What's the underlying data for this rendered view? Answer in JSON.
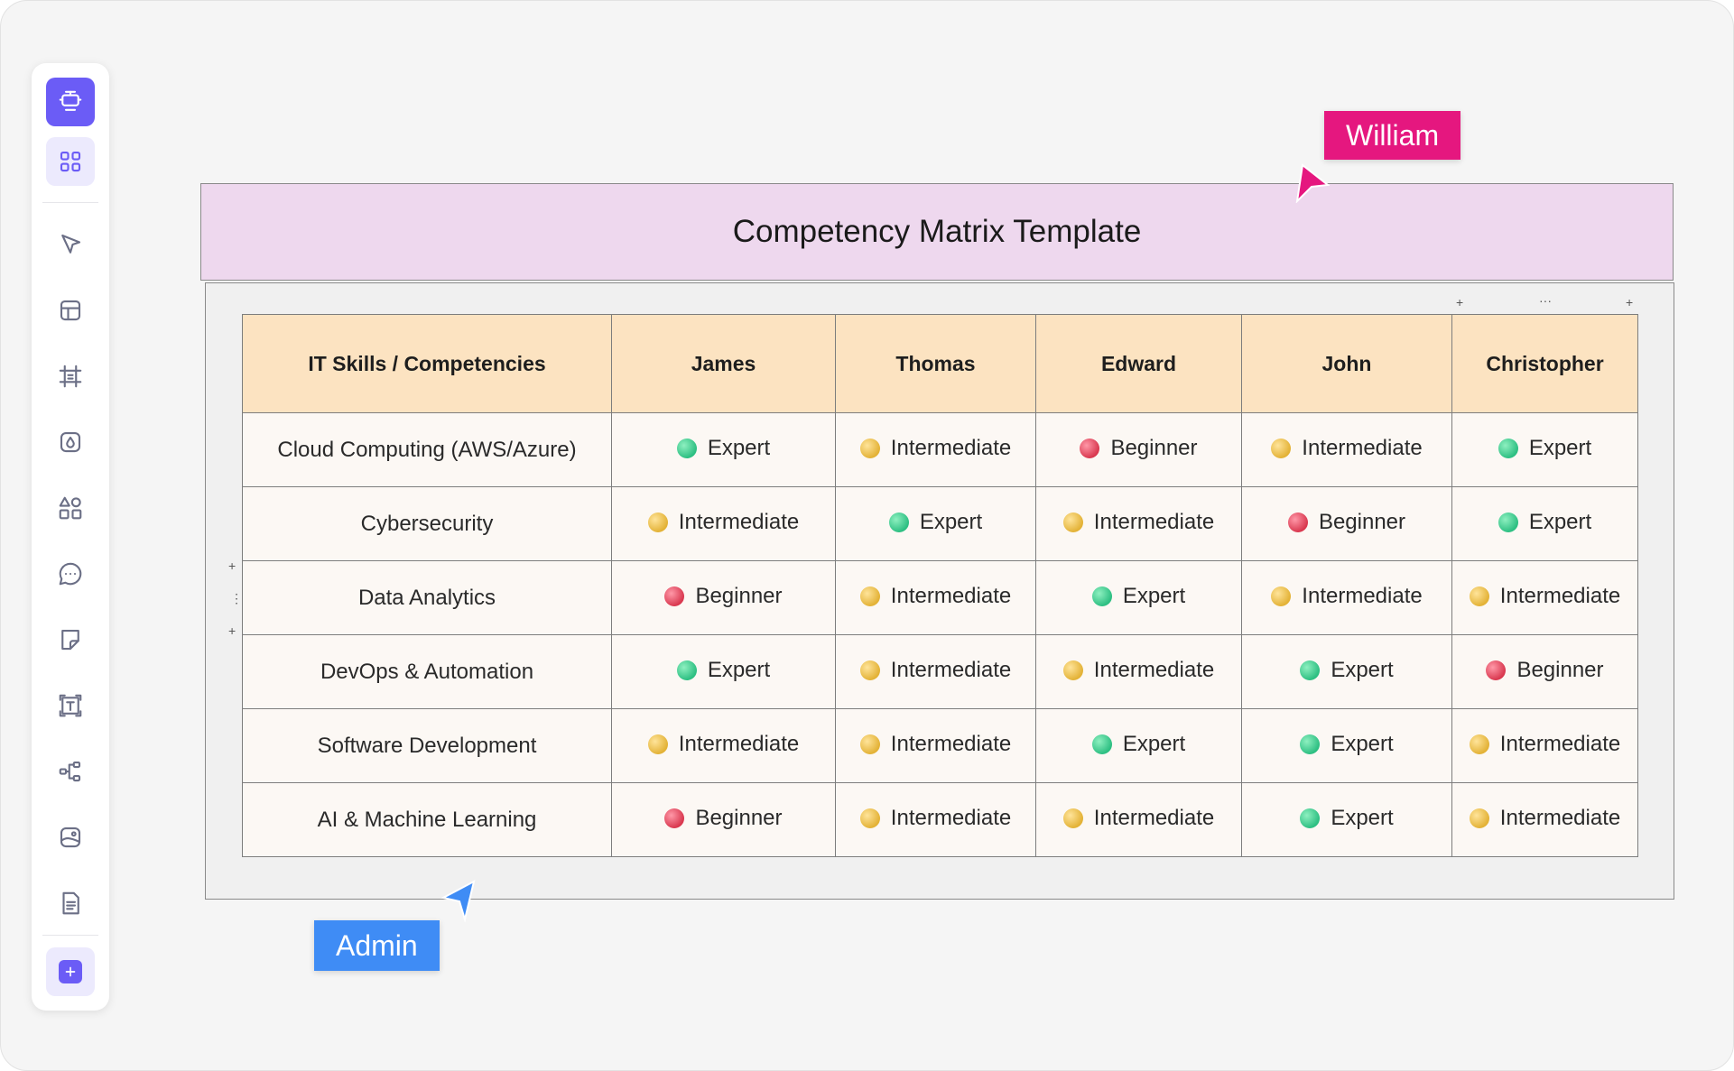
{
  "toolbar": {
    "tools": [
      "present-icon",
      "grid-icon",
      "select-cursor-icon",
      "layout-icon",
      "frame-icon",
      "color-drop-icon",
      "shapes-icon",
      "comment-icon",
      "sticky-note-icon",
      "text-icon",
      "mindmap-icon",
      "image-icon",
      "document-icon",
      "add-icon"
    ]
  },
  "board": {
    "title": "Competency Matrix Template",
    "frame_controls": {
      "plus": "+",
      "more": "···",
      "drag": "⋮"
    }
  },
  "matrix": {
    "headers": [
      "IT Skills / Competencies",
      "James",
      "Thomas",
      "Edward",
      "John",
      "Christopher"
    ],
    "rows": [
      {
        "skill": "Cloud Computing (AWS/Azure)",
        "levels": [
          "Expert",
          "Intermediate",
          "Beginner",
          "Intermediate",
          "Expert"
        ]
      },
      {
        "skill": "Cybersecurity",
        "levels": [
          "Intermediate",
          "Expert",
          "Intermediate",
          "Beginner",
          "Expert"
        ]
      },
      {
        "skill": "Data Analytics",
        "levels": [
          "Beginner",
          "Intermediate",
          "Expert",
          "Intermediate",
          "Intermediate"
        ]
      },
      {
        "skill": "DevOps & Automation",
        "levels": [
          "Expert",
          "Intermediate",
          "Intermediate",
          "Expert",
          "Beginner"
        ]
      },
      {
        "skill": "Software Development",
        "levels": [
          "Intermediate",
          "Intermediate",
          "Expert",
          "Expert",
          "Intermediate"
        ]
      },
      {
        "skill": "AI & Machine Learning",
        "levels": [
          "Beginner",
          "Intermediate",
          "Intermediate",
          "Expert",
          "Intermediate"
        ]
      }
    ],
    "level_colors": {
      "Expert": "#2dbf82",
      "Intermediate": "#e3b236",
      "Beginner": "#d9384f"
    }
  },
  "cursors": {
    "william": {
      "name": "William",
      "color": "#e5177f"
    },
    "admin": {
      "name": "Admin",
      "color": "#3f8cf5"
    }
  }
}
